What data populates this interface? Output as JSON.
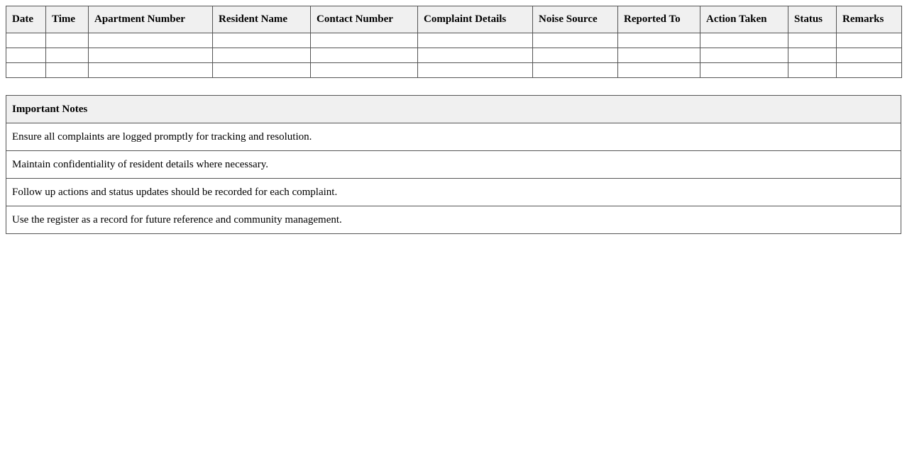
{
  "log_table": {
    "headers": [
      "Date",
      "Time",
      "Apartment Number",
      "Resident Name",
      "Contact Number",
      "Complaint Details",
      "Noise Source",
      "Reported To",
      "Action Taken",
      "Status",
      "Remarks"
    ],
    "rows": 3
  },
  "notes": {
    "title": "Important Notes",
    "items": [
      "Ensure all complaints are logged promptly for tracking and resolution.",
      "Maintain confidentiality of resident details where necessary.",
      "Follow up actions and status updates should be recorded for each complaint.",
      "Use the register as a record for future reference and community management."
    ]
  },
  "colors": {
    "border": "#555555",
    "header_bg": "#f0f0f0"
  }
}
